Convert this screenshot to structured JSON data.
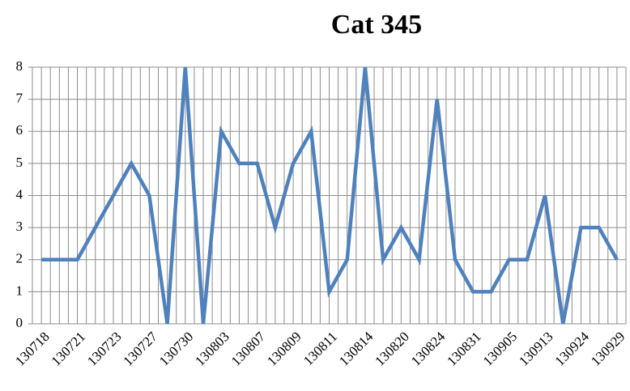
{
  "chart_data": {
    "type": "line",
    "title": "Cat 345",
    "categories": [
      "130718",
      null,
      "130721",
      null,
      "130723",
      null,
      "130727",
      null,
      "130730",
      null,
      "130803",
      null,
      "130807",
      null,
      "130809",
      null,
      "130811",
      null,
      "130814",
      null,
      "130820",
      null,
      "130824",
      null,
      "130831",
      null,
      "130905",
      null,
      "130913",
      null,
      "130924",
      null,
      "130929"
    ],
    "series": [
      {
        "color": "#4f81bd",
        "values": [
          2,
          2,
          2,
          3,
          4,
          5,
          4,
          0,
          8,
          0,
          6,
          5,
          5,
          3,
          5,
          6,
          1,
          2,
          8,
          2,
          3,
          2,
          7,
          2,
          1,
          1,
          2,
          2,
          4,
          0,
          3,
          3,
          2
        ]
      }
    ],
    "ylim": [
      0,
      8
    ],
    "yticks": [
      0,
      1,
      2,
      3,
      4,
      5,
      6,
      7,
      8
    ],
    "grid": true
  }
}
